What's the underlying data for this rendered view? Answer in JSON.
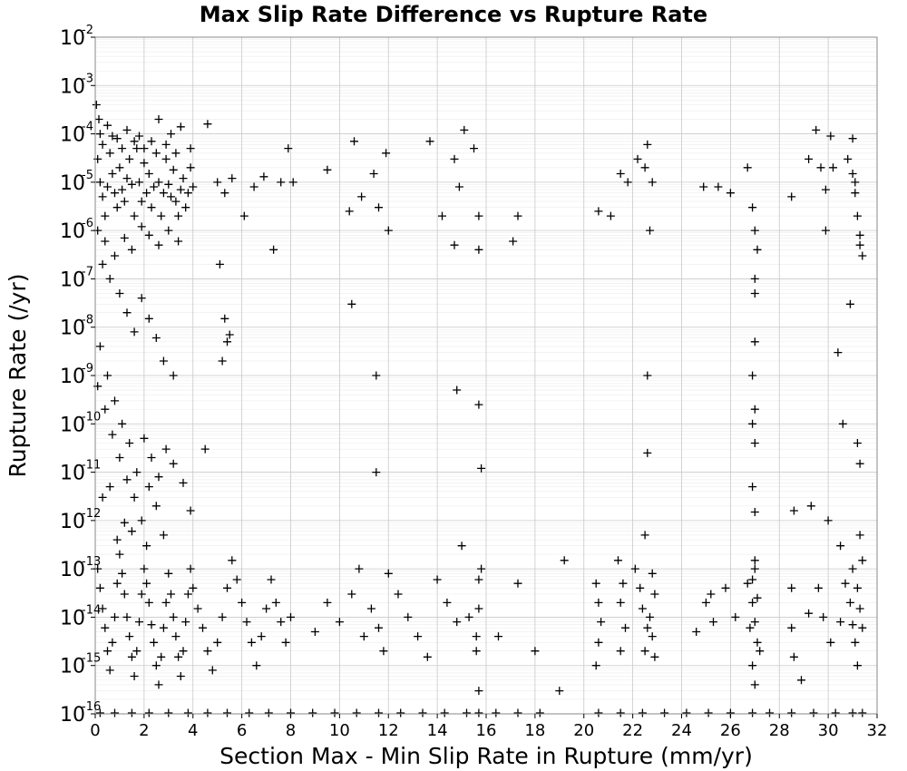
{
  "chart_data": {
    "type": "scatter",
    "title": "Max Slip Rate Difference vs Rupture Rate",
    "xlabel": "Section Max - Min Slip Rate in Rupture (mm/yr)",
    "ylabel": "Rupture Rate (/yr)",
    "xlim": [
      0,
      32
    ],
    "ylim": [
      1e-16,
      0.01
    ],
    "yscale": "log",
    "grid": true,
    "marker": "plus",
    "marker_color": "#000000",
    "x_ticks": [
      "0",
      "2",
      "4",
      "6",
      "8",
      "10",
      "12",
      "14",
      "16",
      "18",
      "20",
      "22",
      "24",
      "26",
      "28",
      "30",
      "32"
    ],
    "y_ticks": [
      {
        "base": "10",
        "exp": "-16"
      },
      {
        "base": "10",
        "exp": "-15"
      },
      {
        "base": "10",
        "exp": "-14"
      },
      {
        "base": "10",
        "exp": "-13"
      },
      {
        "base": "10",
        "exp": "-12"
      },
      {
        "base": "10",
        "exp": "-11"
      },
      {
        "base": "10",
        "exp": "-10"
      },
      {
        "base": "10",
        "exp": "-9"
      },
      {
        "base": "10",
        "exp": "-8"
      },
      {
        "base": "10",
        "exp": "-7"
      },
      {
        "base": "10",
        "exp": "-6"
      },
      {
        "base": "10",
        "exp": "-5"
      },
      {
        "base": "10",
        "exp": "-4"
      },
      {
        "base": "10",
        "exp": "-3"
      },
      {
        "base": "10",
        "exp": "-2"
      }
    ],
    "points": [
      [
        0.1,
        3e-05
      ],
      [
        0.2,
        1e-05
      ],
      [
        0.3,
        5e-06
      ],
      [
        0.4,
        2e-06
      ],
      [
        0.5,
        8e-06
      ],
      [
        0.6,
        4e-05
      ],
      [
        0.7,
        1.5e-05
      ],
      [
        0.8,
        6e-06
      ],
      [
        0.9,
        3e-06
      ],
      [
        1.0,
        2e-05
      ],
      [
        1.1,
        7e-06
      ],
      [
        1.2,
        4e-06
      ],
      [
        1.3,
        1.2e-05
      ],
      [
        1.4,
        3e-05
      ],
      [
        1.5,
        9e-06
      ],
      [
        1.6,
        2e-06
      ],
      [
        1.7,
        5e-05
      ],
      [
        1.8,
        1e-05
      ],
      [
        1.9,
        4e-06
      ],
      [
        2.0,
        2.5e-05
      ],
      [
        2.1,
        6e-06
      ],
      [
        2.2,
        1.5e-05
      ],
      [
        2.3,
        3e-06
      ],
      [
        2.4,
        8e-06
      ],
      [
        2.5,
        4e-05
      ],
      [
        2.6,
        1e-05
      ],
      [
        2.7,
        2e-06
      ],
      [
        2.8,
        6e-06
      ],
      [
        2.9,
        3e-05
      ],
      [
        3.0,
        9e-06
      ],
      [
        3.1,
        5e-06
      ],
      [
        3.2,
        1.8e-05
      ],
      [
        3.3,
        4e-06
      ],
      [
        3.4,
        2e-06
      ],
      [
        3.5,
        7e-06
      ],
      [
        3.6,
        1.2e-05
      ],
      [
        3.7,
        3e-06
      ],
      [
        3.8,
        6e-06
      ],
      [
        3.9,
        2e-05
      ],
      [
        4.0,
        8e-06
      ],
      [
        0.2,
        0.0001
      ],
      [
        0.5,
        0.00015
      ],
      [
        0.9,
        8e-05
      ],
      [
        1.3,
        0.00012
      ],
      [
        1.8,
        9e-05
      ],
      [
        2.3,
        7e-05
      ],
      [
        2.6,
        0.0002
      ],
      [
        3.1,
        0.0001
      ],
      [
        3.5,
        0.00014
      ],
      [
        4.6,
        0.00016
      ],
      [
        0.05,
        0.0004
      ],
      [
        0.15,
        0.0002
      ],
      [
        0.3,
        6e-05
      ],
      [
        0.7,
        9e-05
      ],
      [
        1.1,
        5e-05
      ],
      [
        1.6,
        7e-05
      ],
      [
        2.0,
        5e-05
      ],
      [
        2.9,
        6e-05
      ],
      [
        3.3,
        4e-05
      ],
      [
        3.9,
        5e-05
      ],
      [
        0.1,
        1e-06
      ],
      [
        0.4,
        6e-07
      ],
      [
        0.8,
        3e-07
      ],
      [
        1.2,
        7e-07
      ],
      [
        1.5,
        4e-07
      ],
      [
        1.9,
        1.2e-06
      ],
      [
        2.2,
        8e-07
      ],
      [
        2.6,
        5e-07
      ],
      [
        3.0,
        1e-06
      ],
      [
        3.4,
        6e-07
      ],
      [
        0.3,
        2e-07
      ],
      [
        0.6,
        1e-07
      ],
      [
        1.0,
        5e-08
      ],
      [
        1.3,
        2e-08
      ],
      [
        1.6,
        8e-09
      ],
      [
        1.9,
        4e-08
      ],
      [
        2.2,
        1.5e-08
      ],
      [
        2.5,
        6e-09
      ],
      [
        2.8,
        2e-09
      ],
      [
        3.2,
        1e-09
      ],
      [
        0.2,
        4e-09
      ],
      [
        0.5,
        1e-09
      ],
      [
        0.8,
        3e-10
      ],
      [
        1.1,
        1e-10
      ],
      [
        1.4,
        4e-11
      ],
      [
        1.7,
        1e-11
      ],
      [
        2.0,
        5e-11
      ],
      [
        2.3,
        2e-11
      ],
      [
        2.6,
        8e-12
      ],
      [
        2.9,
        3e-11
      ],
      [
        3.2,
        1.5e-11
      ],
      [
        3.6,
        6e-12
      ],
      [
        0.4,
        2e-10
      ],
      [
        0.7,
        6e-11
      ],
      [
        1.0,
        2e-11
      ],
      [
        1.3,
        7e-12
      ],
      [
        1.6,
        3e-12
      ],
      [
        1.9,
        1e-12
      ],
      [
        2.2,
        5e-12
      ],
      [
        2.5,
        2e-12
      ],
      [
        3.9,
        1.6e-12
      ],
      [
        4.5,
        3e-11
      ],
      [
        0.1,
        6e-10
      ],
      [
        0.6,
        5e-12
      ],
      [
        1.2,
        9e-13
      ],
      [
        0.3,
        3e-12
      ],
      [
        0.9,
        4e-13
      ],
      [
        1.5,
        6e-13
      ],
      [
        2.1,
        3e-13
      ],
      [
        2.8,
        5e-13
      ],
      [
        0.1,
        1e-13
      ],
      [
        0.2,
        4e-14
      ],
      [
        0.3,
        1.5e-14
      ],
      [
        0.4,
        6e-15
      ],
      [
        0.5,
        2e-15
      ],
      [
        0.6,
        8e-16
      ],
      [
        0.7,
        3e-15
      ],
      [
        0.8,
        1e-14
      ],
      [
        0.9,
        5e-14
      ],
      [
        1.0,
        2e-13
      ],
      [
        1.1,
        8e-14
      ],
      [
        1.2,
        3e-14
      ],
      [
        1.3,
        1e-14
      ],
      [
        1.4,
        4e-15
      ],
      [
        1.5,
        1.5e-15
      ],
      [
        1.6,
        6e-16
      ],
      [
        1.7,
        2e-15
      ],
      [
        1.8,
        8e-15
      ],
      [
        1.9,
        3e-14
      ],
      [
        2.0,
        1e-13
      ],
      [
        2.1,
        5e-14
      ],
      [
        2.2,
        2e-14
      ],
      [
        2.3,
        7e-15
      ],
      [
        2.4,
        3e-15
      ],
      [
        2.5,
        1e-15
      ],
      [
        2.6,
        4e-16
      ],
      [
        2.7,
        1.5e-15
      ],
      [
        2.8,
        6e-15
      ],
      [
        2.9,
        2e-14
      ],
      [
        3.0,
        8e-14
      ],
      [
        3.1,
        3e-14
      ],
      [
        3.2,
        1e-14
      ],
      [
        3.3,
        4e-15
      ],
      [
        3.4,
        1.5e-15
      ],
      [
        3.5,
        6e-16
      ],
      [
        3.6,
        2e-15
      ],
      [
        3.7,
        8e-15
      ],
      [
        3.8,
        3e-14
      ],
      [
        3.9,
        1e-13
      ],
      [
        4.0,
        4e-14
      ],
      [
        4.2,
        1.5e-14
      ],
      [
        4.4,
        6e-15
      ],
      [
        4.6,
        2e-15
      ],
      [
        4.8,
        8e-16
      ],
      [
        5.0,
        3e-15
      ],
      [
        5.2,
        1e-14
      ],
      [
        5.4,
        4e-14
      ],
      [
        5.6,
        1.5e-13
      ],
      [
        5.8,
        6e-14
      ],
      [
        6.0,
        2e-14
      ],
      [
        6.2,
        8e-15
      ],
      [
        6.4,
        3e-15
      ],
      [
        6.6,
        1e-15
      ],
      [
        6.8,
        4e-15
      ],
      [
        7.0,
        1.5e-14
      ],
      [
        7.2,
        6e-14
      ],
      [
        7.4,
        2e-14
      ],
      [
        7.6,
        8e-15
      ],
      [
        7.8,
        3e-15
      ],
      [
        8.0,
        1e-14
      ],
      [
        0.2,
        1e-16
      ],
      [
        0.8,
        1e-16
      ],
      [
        1.5,
        1e-16
      ],
      [
        2.2,
        1e-16
      ],
      [
        3.0,
        1e-16
      ],
      [
        3.8,
        1e-16
      ],
      [
        4.6,
        1e-16
      ],
      [
        5.4,
        1e-16
      ],
      [
        6.3,
        1e-16
      ],
      [
        7.1,
        1e-16
      ],
      [
        8.0,
        1e-16
      ],
      [
        8.9,
        1e-16
      ],
      [
        9.8,
        1e-16
      ],
      [
        10.7,
        1e-16
      ],
      [
        11.6,
        1e-16
      ],
      [
        12.5,
        1e-16
      ],
      [
        13.4,
        1e-16
      ],
      [
        14.3,
        1e-16
      ],
      [
        15.2,
        1e-16
      ],
      [
        15.7,
        1e-16
      ],
      [
        16.4,
        1e-16
      ],
      [
        17.3,
        1e-16
      ],
      [
        18.2,
        1e-16
      ],
      [
        20.6,
        1e-16
      ],
      [
        21.5,
        1e-16
      ],
      [
        22.4,
        1e-16
      ],
      [
        23.3,
        1e-16
      ],
      [
        24.2,
        1e-16
      ],
      [
        25.1,
        1e-16
      ],
      [
        26.0,
        1e-16
      ],
      [
        26.9,
        1e-16
      ],
      [
        27.6,
        1e-16
      ],
      [
        28.5,
        1e-16
      ],
      [
        29.4,
        1e-16
      ],
      [
        30.3,
        1e-16
      ],
      [
        31.0,
        1e-16
      ],
      [
        31.4,
        1e-16
      ],
      [
        5.0,
        1e-05
      ],
      [
        5.3,
        6e-06
      ],
      [
        5.6,
        1.2e-05
      ],
      [
        6.1,
        2e-06
      ],
      [
        6.5,
        8e-06
      ],
      [
        6.9,
        1.3e-05
      ],
      [
        7.3,
        4e-07
      ],
      [
        7.6,
        1e-05
      ],
      [
        7.9,
        5e-05
      ],
      [
        8.1,
        1e-05
      ],
      [
        5.1,
        2e-07
      ],
      [
        5.3,
        1.5e-08
      ],
      [
        5.4,
        5e-09
      ],
      [
        5.2,
        2e-09
      ],
      [
        5.5,
        7e-09
      ],
      [
        9.5,
        1.8e-05
      ],
      [
        10.4,
        2.5e-06
      ],
      [
        10.6,
        7e-05
      ],
      [
        10.9,
        5e-06
      ],
      [
        11.4,
        1.5e-05
      ],
      [
        11.6,
        3e-06
      ],
      [
        11.9,
        4e-05
      ],
      [
        12.0,
        1e-06
      ],
      [
        10.5,
        3e-08
      ],
      [
        11.5,
        1e-09
      ],
      [
        11.5,
        1e-11
      ],
      [
        13.7,
        7e-05
      ],
      [
        14.2,
        2e-06
      ],
      [
        14.7,
        3e-05
      ],
      [
        14.9,
        8e-06
      ],
      [
        15.1,
        0.00012
      ],
      [
        15.5,
        5e-05
      ],
      [
        15.7,
        2e-06
      ],
      [
        15.7,
        4e-07
      ],
      [
        14.7,
        5e-07
      ],
      [
        14.8,
        5e-10
      ],
      [
        15.7,
        2.5e-10
      ],
      [
        15.8,
        1.2e-11
      ],
      [
        17.1,
        6e-07
      ],
      [
        17.3,
        2e-06
      ],
      [
        20.6,
        2.5e-06
      ],
      [
        21.1,
        2e-06
      ],
      [
        21.5,
        1.5e-05
      ],
      [
        21.8,
        1e-05
      ],
      [
        22.2,
        3e-05
      ],
      [
        22.5,
        2e-05
      ],
      [
        22.6,
        6e-05
      ],
      [
        22.8,
        1e-05
      ],
      [
        22.7,
        1e-06
      ],
      [
        22.6,
        1e-09
      ],
      [
        22.6,
        2.5e-11
      ],
      [
        22.5,
        5e-13
      ],
      [
        24.9,
        8e-06
      ],
      [
        25.5,
        8e-06
      ],
      [
        26.0,
        6e-06
      ],
      [
        26.7,
        2e-05
      ],
      [
        26.9,
        3e-06
      ],
      [
        27.0,
        1e-06
      ],
      [
        27.1,
        4e-07
      ],
      [
        27.0,
        1e-07
      ],
      [
        27.0,
        5e-08
      ],
      [
        27.0,
        5e-09
      ],
      [
        26.9,
        1e-09
      ],
      [
        27.0,
        2e-10
      ],
      [
        26.9,
        1e-10
      ],
      [
        27.0,
        4e-11
      ],
      [
        26.9,
        5e-12
      ],
      [
        27.0,
        1.5e-12
      ],
      [
        28.5,
        5e-06
      ],
      [
        29.2,
        3e-05
      ],
      [
        29.5,
        0.00012
      ],
      [
        29.7,
        2e-05
      ],
      [
        29.9,
        7e-06
      ],
      [
        30.1,
        9e-05
      ],
      [
        30.2,
        2e-05
      ],
      [
        29.9,
        1e-06
      ],
      [
        30.4,
        3e-09
      ],
      [
        30.6,
        1e-10
      ],
      [
        30.9,
        3e-08
      ],
      [
        31.2,
        4e-11
      ],
      [
        31.3,
        1.5e-11
      ],
      [
        28.6,
        1.6e-12
      ],
      [
        29.3,
        2e-12
      ],
      [
        30.0,
        1e-12
      ],
      [
        30.5,
        3e-13
      ],
      [
        30.8,
        3e-05
      ],
      [
        31.0,
        1.5e-05
      ],
      [
        31.1,
        6e-06
      ],
      [
        31.2,
        2e-06
      ],
      [
        31.3,
        8e-07
      ],
      [
        31.4,
        3e-07
      ],
      [
        31.0,
        8e-05
      ],
      [
        31.1,
        1e-05
      ],
      [
        31.3,
        5e-07
      ],
      [
        9.0,
        5e-15
      ],
      [
        9.5,
        2e-14
      ],
      [
        10.0,
        8e-15
      ],
      [
        10.5,
        3e-14
      ],
      [
        10.8,
        1e-13
      ],
      [
        11.0,
        4e-15
      ],
      [
        11.3,
        1.5e-14
      ],
      [
        11.6,
        6e-15
      ],
      [
        11.8,
        2e-15
      ],
      [
        12.0,
        8e-14
      ],
      [
        12.4,
        3e-14
      ],
      [
        12.8,
        1e-14
      ],
      [
        13.2,
        4e-15
      ],
      [
        13.6,
        1.5e-15
      ],
      [
        14.0,
        6e-14
      ],
      [
        14.4,
        2e-14
      ],
      [
        14.8,
        8e-15
      ],
      [
        15.0,
        3e-13
      ],
      [
        15.3,
        1e-14
      ],
      [
        15.6,
        4e-15
      ],
      [
        15.7,
        1.5e-14
      ],
      [
        15.7,
        6e-14
      ],
      [
        15.6,
        2e-15
      ],
      [
        15.8,
        1e-13
      ],
      [
        15.7,
        3e-16
      ],
      [
        16.5,
        4e-15
      ],
      [
        17.3,
        5e-14
      ],
      [
        18.0,
        2e-15
      ],
      [
        19.2,
        1.5e-13
      ],
      [
        19.0,
        3e-16
      ],
      [
        20.5,
        5e-14
      ],
      [
        20.6,
        2e-14
      ],
      [
        20.7,
        8e-15
      ],
      [
        20.6,
        3e-15
      ],
      [
        20.5,
        1e-15
      ],
      [
        21.4,
        1.5e-13
      ],
      [
        21.6,
        5e-14
      ],
      [
        21.5,
        2e-14
      ],
      [
        21.7,
        6e-15
      ],
      [
        21.5,
        2e-15
      ],
      [
        22.1,
        1e-13
      ],
      [
        22.3,
        4e-14
      ],
      [
        22.4,
        1.5e-14
      ],
      [
        22.6,
        6e-15
      ],
      [
        22.5,
        2e-15
      ],
      [
        22.8,
        8e-14
      ],
      [
        22.9,
        3e-14
      ],
      [
        22.7,
        1e-14
      ],
      [
        22.8,
        4e-15
      ],
      [
        22.9,
        1.5e-15
      ],
      [
        24.6,
        5e-15
      ],
      [
        25.0,
        2e-14
      ],
      [
        25.3,
        8e-15
      ],
      [
        25.2,
        3e-14
      ],
      [
        25.8,
        4e-14
      ],
      [
        26.2,
        1e-14
      ],
      [
        26.7,
        5e-14
      ],
      [
        26.9,
        2e-14
      ],
      [
        27.0,
        8e-15
      ],
      [
        27.1,
        3e-15
      ],
      [
        26.9,
        1e-15
      ],
      [
        27.0,
        4e-16
      ],
      [
        27.0,
        1e-13
      ],
      [
        26.9,
        6e-14
      ],
      [
        27.1,
        2.5e-14
      ],
      [
        27.0,
        1.5e-13
      ],
      [
        26.8,
        6e-15
      ],
      [
        27.2,
        2e-15
      ],
      [
        28.5,
        6e-15
      ],
      [
        28.6,
        1.5e-15
      ],
      [
        28.9,
        5e-16
      ],
      [
        29.2,
        1.2e-14
      ],
      [
        29.6,
        4e-14
      ],
      [
        29.8,
        1e-14
      ],
      [
        30.1,
        3e-15
      ],
      [
        30.5,
        8e-15
      ],
      [
        30.7,
        5e-14
      ],
      [
        30.9,
        2e-14
      ],
      [
        31.0,
        7e-15
      ],
      [
        31.1,
        3e-15
      ],
      [
        31.2,
        1e-15
      ],
      [
        31.0,
        1e-13
      ],
      [
        31.2,
        4e-14
      ],
      [
        31.3,
        1.5e-14
      ],
      [
        31.4,
        6e-15
      ],
      [
        31.3,
        5e-13
      ],
      [
        31.4,
        1.5e-13
      ],
      [
        28.5,
        4e-14
      ]
    ]
  }
}
